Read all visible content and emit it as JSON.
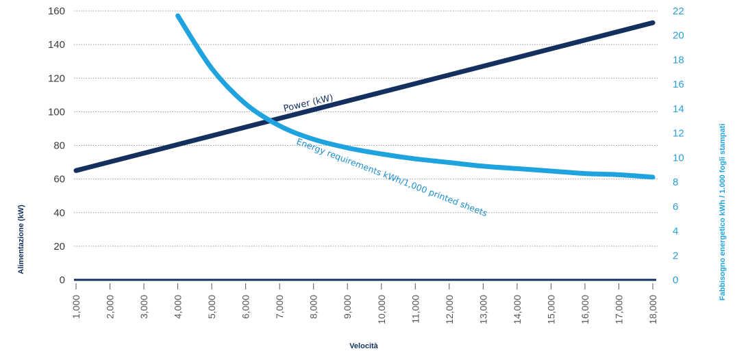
{
  "chart_data": {
    "type": "line",
    "xlabel": "Velocità",
    "ylabel_left": "Alimentazione (kW)",
    "ylabel_right": "Fabbisogno energetico kWh / 1.000 fogli stampati",
    "x_ticks": [
      "1,000",
      "2,000",
      "3,000",
      "4,000",
      "5,000",
      "6,000",
      "7,000",
      "8,000",
      "9,000",
      "10,000",
      "11,000",
      "12,000",
      "13,000",
      "14,000",
      "15,000",
      "16,000",
      "17,000",
      "18,000"
    ],
    "xlim": [
      1000,
      18000
    ],
    "ylim_left": [
      0,
      160
    ],
    "yticks_left": [
      "0",
      "20",
      "40",
      "60",
      "80",
      "100",
      "120",
      "140",
      "160"
    ],
    "ylim_right": [
      0,
      22
    ],
    "yticks_right": [
      "0",
      "2",
      "4",
      "6",
      "8",
      "10",
      "12",
      "14",
      "16",
      "18",
      "20",
      "22"
    ],
    "grid": "horizontal dotted",
    "series": [
      {
        "name": "Power (kW)",
        "axis": "left",
        "color": "#13305f",
        "x": [
          1000,
          18000
        ],
        "y": [
          65,
          153
        ]
      },
      {
        "name": "Energy requirements kWh/1,000 printed sheets",
        "axis": "right",
        "color": "#1fa3de",
        "x": [
          4000,
          5000,
          6000,
          7000,
          8000,
          9000,
          10000,
          11000,
          12000,
          13000,
          14000,
          15000,
          16000,
          17000,
          18000
        ],
        "y": [
          21.6,
          17.3,
          14.4,
          12.6,
          11.5,
          10.8,
          10.3,
          9.9,
          9.6,
          9.3,
          9.1,
          8.9,
          8.7,
          8.6,
          8.4
        ]
      }
    ]
  }
}
